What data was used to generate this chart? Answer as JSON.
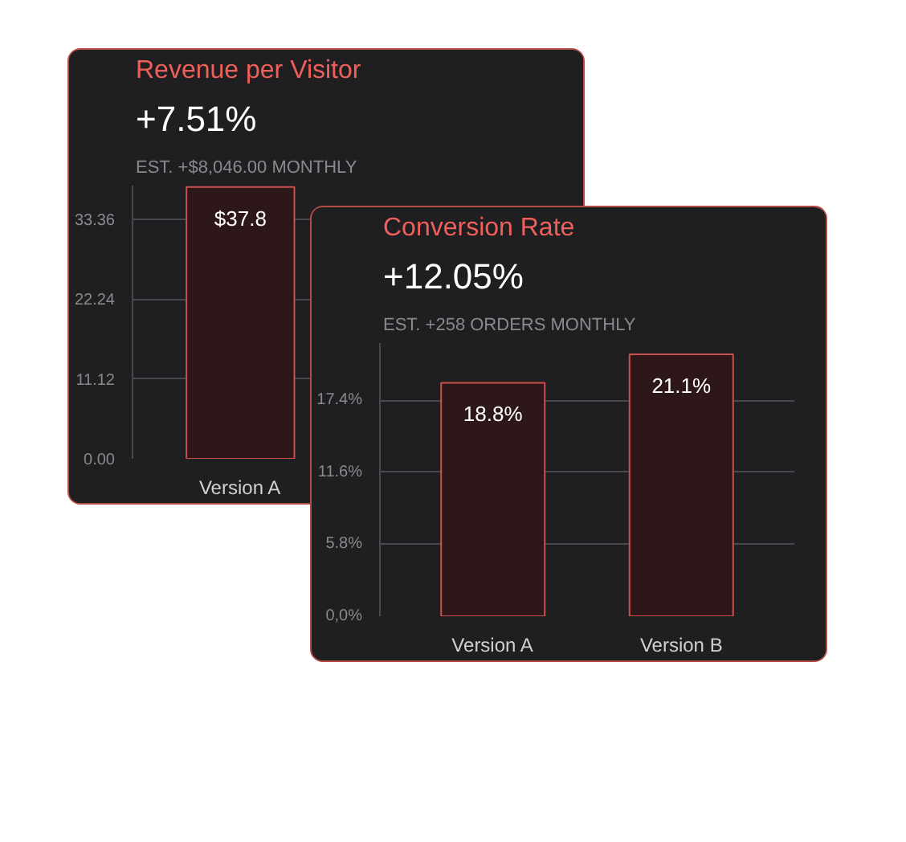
{
  "chart_data": [
    {
      "type": "bar",
      "title": "Revenue per Visitor",
      "subtitle": "+7.51%",
      "annotations": [
        "EST. +$8,046.00 MONTHLY"
      ],
      "categories": [
        "Version A"
      ],
      "values": [
        37.8
      ],
      "value_labels": [
        "$37.8"
      ],
      "color": "#2e1719",
      "ylim": [
        0,
        38
      ],
      "yticks": [
        {
          "value": 0,
          "label": "0.00"
        },
        11.12,
        22.24,
        33.36
      ],
      "grid": "y"
    },
    {
      "type": "bar",
      "title": "Conversion Rate",
      "subtitle": "+12.05%",
      "annotations": [
        "EST. +258 ORDERS MONTHLY"
      ],
      "categories": [
        "Version A",
        "Version B"
      ],
      "values": [
        18.8,
        21.1
      ],
      "value_labels": [
        "18.8%",
        "21.1%"
      ],
      "color": "#2e1719",
      "ylim": [
        0,
        22
      ],
      "yticks": [
        {
          "value": 0,
          "label": "0,0%"
        },
        {
          "value": 5.8,
          "label": "5.8%"
        },
        {
          "value": 11.6,
          "label": "11.6%"
        },
        {
          "value": 17.4,
          "label": "17.4%"
        }
      ],
      "grid": "y"
    }
  ]
}
